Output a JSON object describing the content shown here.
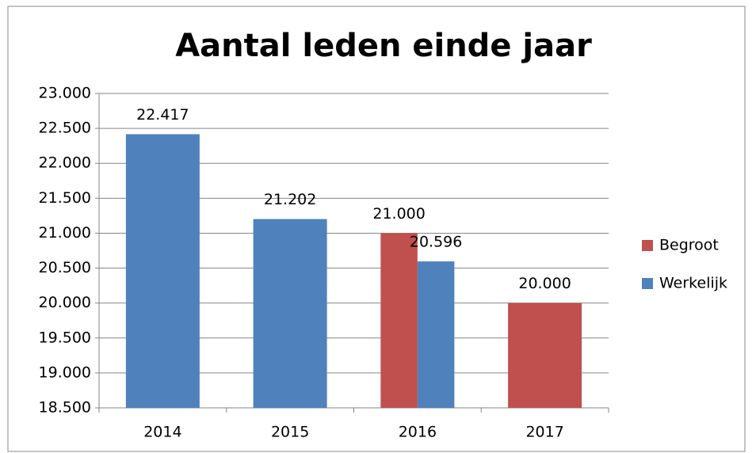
{
  "chart_data": {
    "type": "bar",
    "title": "Aantal leden einde jaar",
    "categories": [
      "2014",
      "2015",
      "2016",
      "2017"
    ],
    "series": [
      {
        "name": "Begroot",
        "color": "#c0504d",
        "values": [
          null,
          null,
          21000,
          20000
        ],
        "value_labels": [
          null,
          null,
          "21.000",
          "20.000"
        ]
      },
      {
        "name": "Werkelijk",
        "color": "#4f81bd",
        "values": [
          22417,
          21202,
          20596,
          null
        ],
        "value_labels": [
          "22.417",
          "21.202",
          "20.596",
          null
        ]
      }
    ],
    "ylim": [
      18500,
      23000
    ],
    "yticks": [
      {
        "value": 18500,
        "label": "18.500"
      },
      {
        "value": 19000,
        "label": "19.000"
      },
      {
        "value": 19500,
        "label": "19.500"
      },
      {
        "value": 20000,
        "label": "20.000"
      },
      {
        "value": 20500,
        "label": "20.500"
      },
      {
        "value": 21000,
        "label": "21.000"
      },
      {
        "value": 21500,
        "label": "21.500"
      },
      {
        "value": 22000,
        "label": "22.000"
      },
      {
        "value": 22500,
        "label": "22.500"
      },
      {
        "value": 23000,
        "label": "23.000"
      }
    ],
    "grid": true,
    "legend": "right"
  }
}
